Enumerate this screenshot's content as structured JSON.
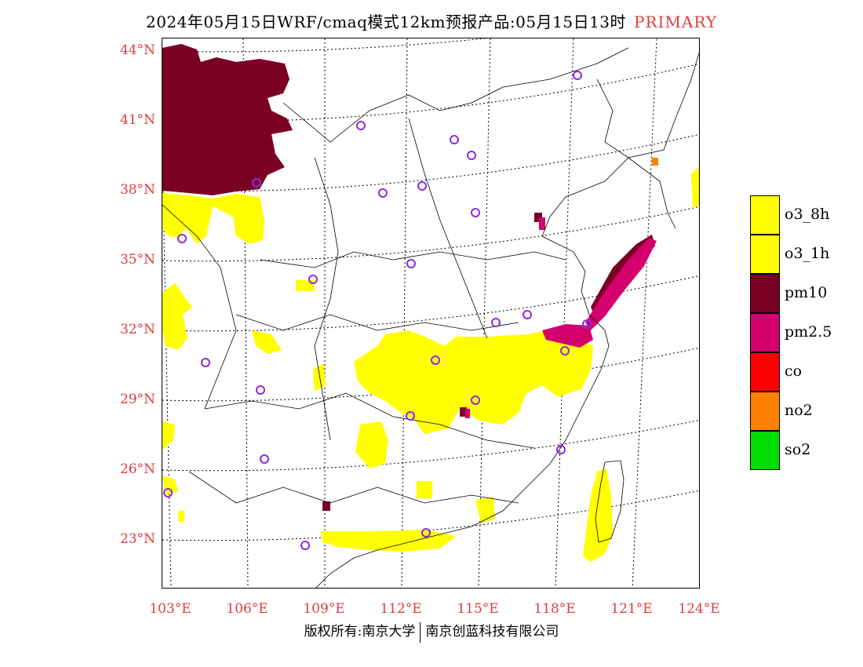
{
  "title": "2024年05月15日WRF/cmaq模式12km预报产品:05月15日13时",
  "title_tag": "PRIMARY",
  "lat_labels": [
    "44°N",
    "41°N",
    "38°N",
    "35°N",
    "32°N",
    "29°N",
    "26°N",
    "23°N"
  ],
  "lon_labels": [
    "103°E",
    "106°E",
    "109°E",
    "112°E",
    "115°E",
    "118°E",
    "121°E",
    "124°E"
  ],
  "legend": [
    {
      "label": "o3_8h",
      "color": "#ffff00"
    },
    {
      "label": "o3_1h",
      "color": "#ffff00"
    },
    {
      "label": "pm10",
      "color": "#7a0026"
    },
    {
      "label": "pm2.5",
      "color": "#d4006e"
    },
    {
      "label": "co",
      "color": "#ff0000"
    },
    {
      "label": "no2",
      "color": "#ff7f00"
    },
    {
      "label": "so2",
      "color": "#00dd00"
    }
  ],
  "footer": {
    "left": "版权所有:南京大学",
    "right": "南京创蓝科技有限公司"
  },
  "colors": {
    "accent_red": "#e03c3c",
    "station_marker": "#8a2be2"
  }
}
